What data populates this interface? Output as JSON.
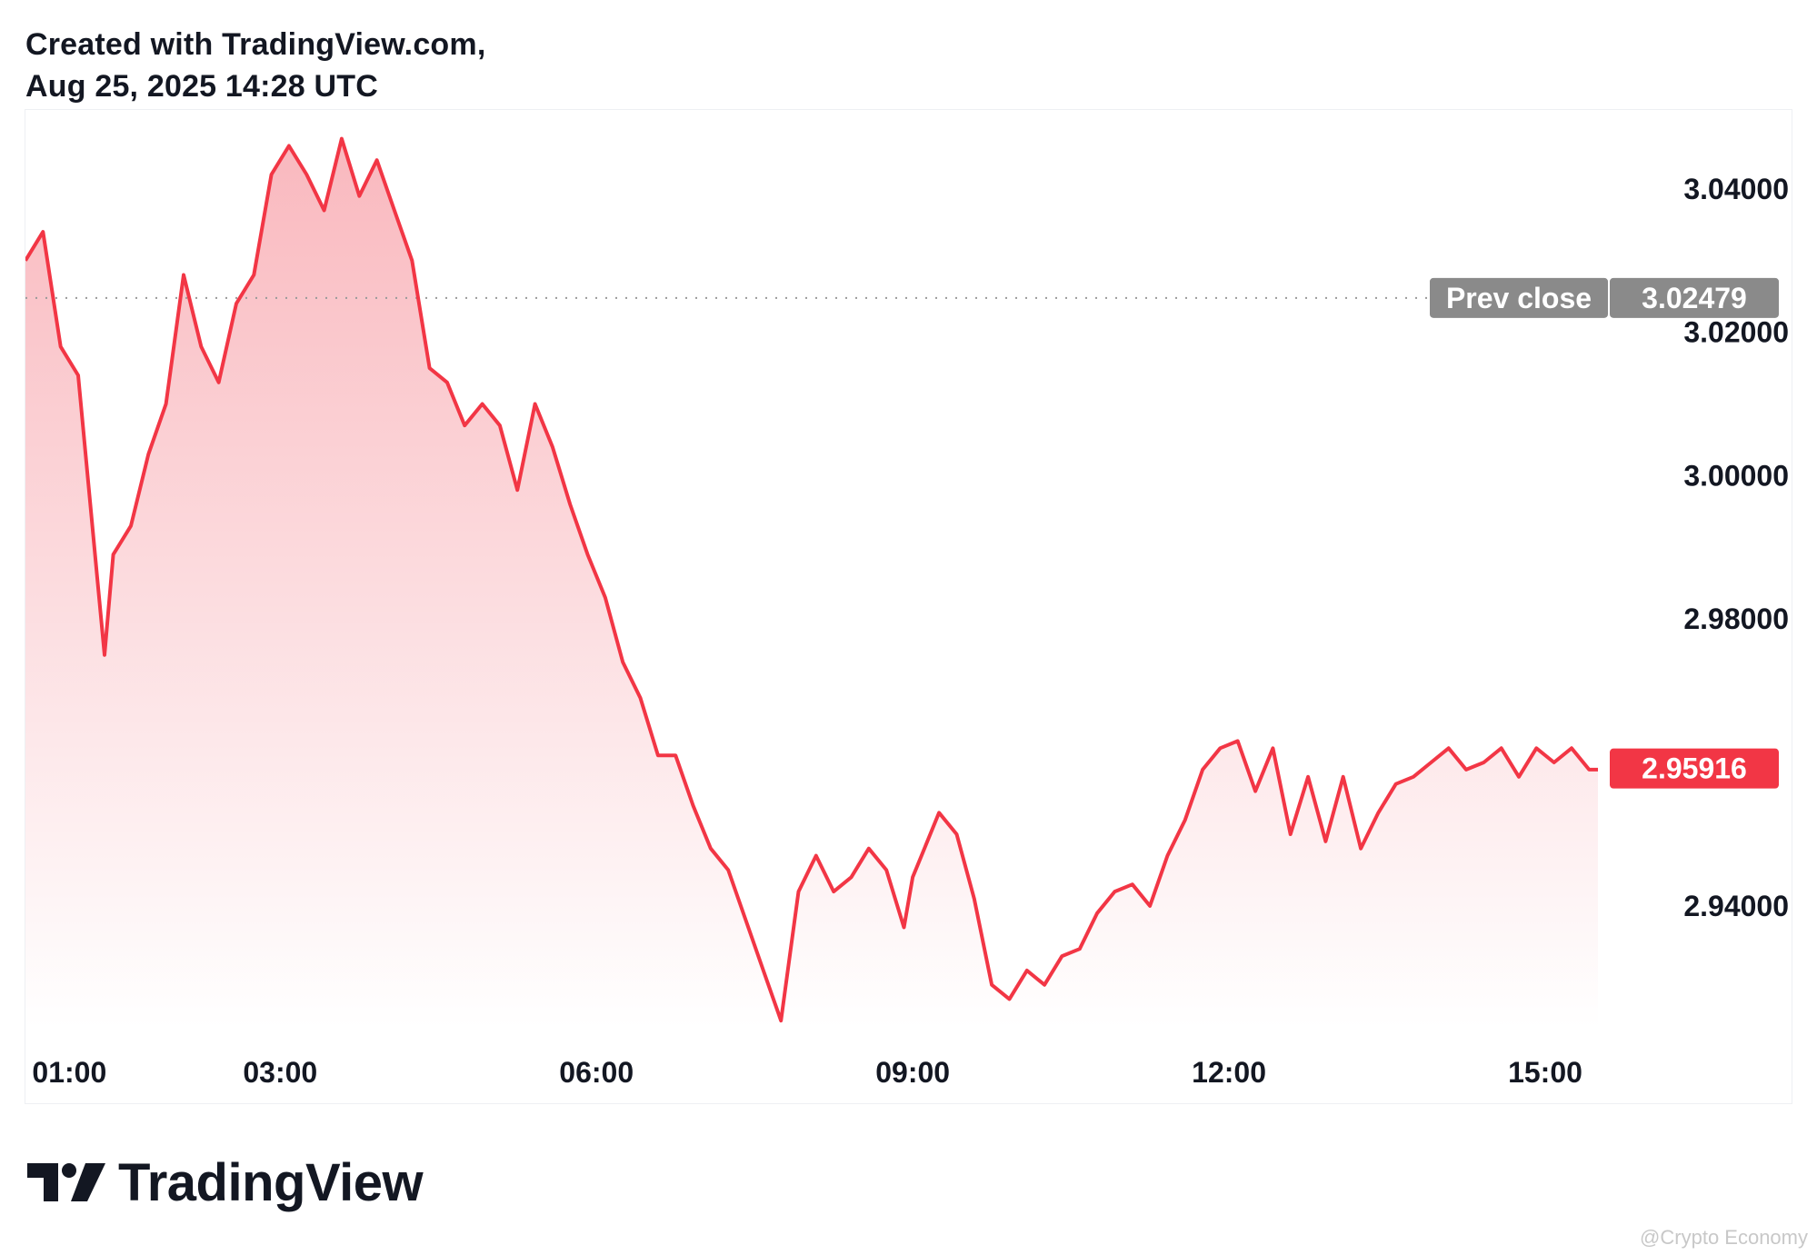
{
  "header": {
    "line1": "Created with TradingView.com,",
    "line2": "Aug 25, 2025 14:28 UTC"
  },
  "brand": {
    "name": "TradingView",
    "icon": "tradingview-logo-icon"
  },
  "watermark": "@Crypto Economy",
  "colors": {
    "line": "#f23645",
    "fill_top": "#f9b8be",
    "fill_bottom": "#ffffff",
    "prev_close_badge": "#8a8a8a",
    "last_price_badge": "#f23645",
    "text": "#131722"
  },
  "chart_data": {
    "type": "area",
    "title": "",
    "xlabel": "",
    "ylabel": "",
    "x_ticks": [
      "01:00",
      "03:00",
      "06:00",
      "09:00",
      "12:00",
      "15:00"
    ],
    "y_ticks": [
      "3.04000",
      "3.02000",
      "3.00000",
      "2.98000",
      "2.94000"
    ],
    "y_tick_values": [
      3.04,
      3.02,
      3.0,
      2.98,
      2.94
    ],
    "ylim": [
      2.923,
      3.051
    ],
    "xlim": [
      "00:35",
      "15:30"
    ],
    "grid": false,
    "prev_close": {
      "label": "Prev close",
      "value_text": "3.02479",
      "value": 3.02479
    },
    "last_price": {
      "value_text": "2.95916",
      "value": 2.95916
    },
    "series": [
      {
        "x": [
          "00:35",
          "00:45",
          "00:55",
          "01:05",
          "01:15",
          "01:20",
          "01:25",
          "01:35",
          "01:45",
          "01:55",
          "02:05",
          "02:15",
          "02:25",
          "02:35",
          "02:45",
          "02:55",
          "03:05",
          "03:15",
          "03:25",
          "03:35",
          "03:45",
          "03:55",
          "04:05",
          "04:15",
          "04:25",
          "04:35",
          "04:45",
          "04:55",
          "05:05",
          "05:15",
          "05:25",
          "05:35",
          "05:45",
          "05:55",
          "06:05",
          "06:15",
          "06:25",
          "06:35",
          "06:45",
          "06:55",
          "07:05",
          "07:15",
          "07:25",
          "07:35",
          "07:45",
          "07:55",
          "08:05",
          "08:15",
          "08:25",
          "08:35",
          "08:45",
          "08:55",
          "09:00",
          "09:05",
          "09:15",
          "09:25",
          "09:35",
          "09:45",
          "09:55",
          "10:05",
          "10:15",
          "10:25",
          "10:35",
          "10:45",
          "10:55",
          "11:05",
          "11:15",
          "11:25",
          "11:35",
          "11:45",
          "11:55",
          "12:05",
          "12:15",
          "12:25",
          "12:35",
          "12:45",
          "12:55",
          "13:05",
          "13:15",
          "13:25",
          "13:35",
          "13:45",
          "13:55",
          "14:05",
          "14:15",
          "14:25",
          "14:35",
          "14:45",
          "14:55",
          "15:05",
          "15:15",
          "15:25",
          "15:30"
        ],
        "y": [
          3.03,
          3.034,
          3.018,
          3.014,
          2.988,
          2.975,
          2.989,
          2.993,
          3.003,
          3.01,
          3.028,
          3.018,
          3.013,
          3.024,
          3.028,
          3.042,
          3.046,
          3.042,
          3.037,
          3.047,
          3.039,
          3.044,
          3.037,
          3.03,
          3.015,
          3.013,
          3.007,
          3.01,
          3.007,
          2.998,
          3.01,
          3.004,
          2.996,
          2.989,
          2.983,
          2.974,
          2.969,
          2.961,
          2.961,
          2.954,
          2.948,
          2.945,
          2.938,
          2.931,
          2.924,
          2.942,
          2.947,
          2.942,
          2.944,
          2.948,
          2.945,
          2.937,
          2.944,
          2.947,
          2.953,
          2.95,
          2.941,
          2.929,
          2.927,
          2.931,
          2.929,
          2.933,
          2.934,
          2.939,
          2.942,
          2.943,
          2.94,
          2.947,
          2.952,
          2.959,
          2.962,
          2.963,
          2.956,
          2.962,
          2.95,
          2.958,
          2.949,
          2.958,
          2.948,
          2.953,
          2.957,
          2.958,
          2.96,
          2.962,
          2.959,
          2.96,
          2.962,
          2.958,
          2.962,
          2.96,
          2.962,
          2.959,
          2.959
        ]
      }
    ]
  }
}
